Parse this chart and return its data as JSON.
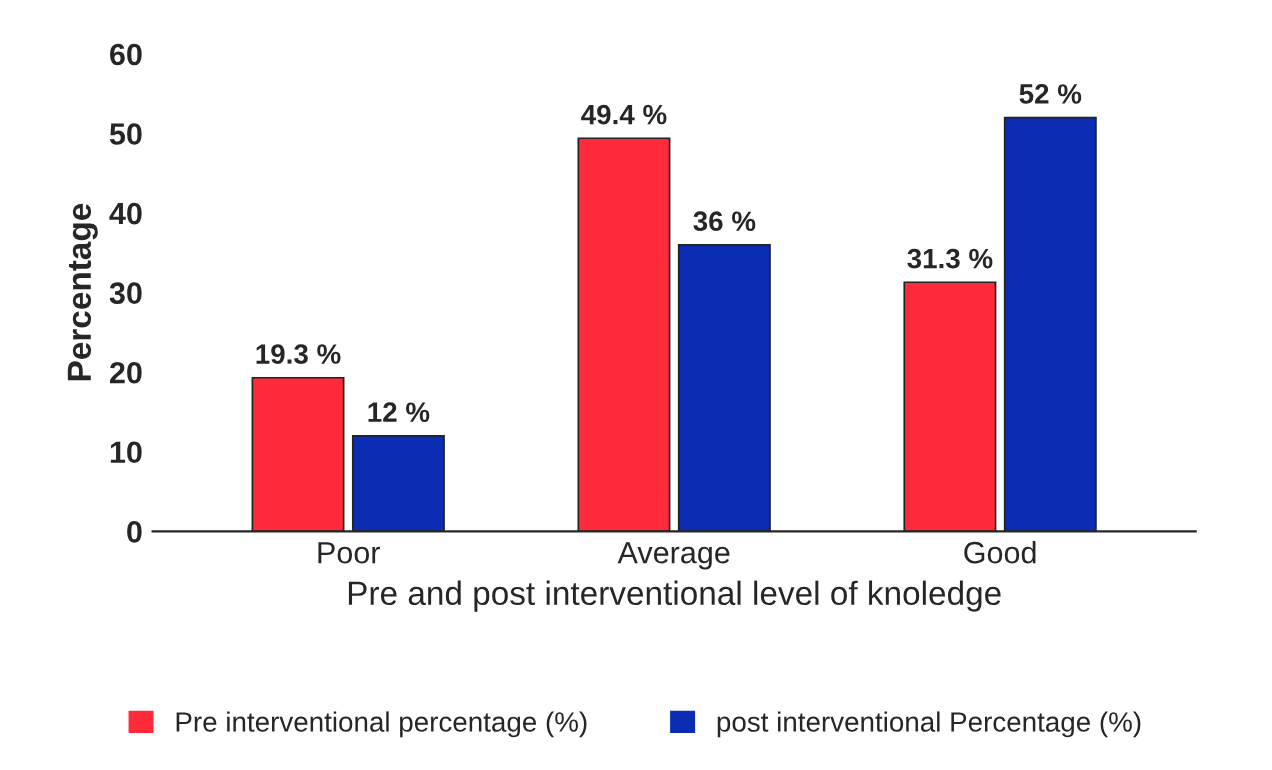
{
  "chart_data": {
    "type": "bar",
    "xlabel": "Pre and post interventional level of knoledge",
    "ylabel": "Percentage",
    "categories": [
      "Poor",
      "Average",
      "Good"
    ],
    "series": [
      {
        "name": "Pre interventional percentage (%)",
        "color": "#ff2a3a",
        "values": [
          19.3,
          49.4,
          31.3
        ],
        "value_labels": [
          "19.3 %",
          "49.4 %",
          "31.3 %"
        ]
      },
      {
        "name": "post interventional Percentage (%)",
        "color": "#0a2db4",
        "values": [
          12,
          36,
          52
        ],
        "value_labels": [
          "12 %",
          "36 %",
          "52 %"
        ]
      }
    ],
    "ylim": [
      0,
      60
    ],
    "yticks": [
      0,
      10,
      20,
      30,
      40,
      50,
      60
    ],
    "grid": false,
    "legend": "bottom"
  }
}
